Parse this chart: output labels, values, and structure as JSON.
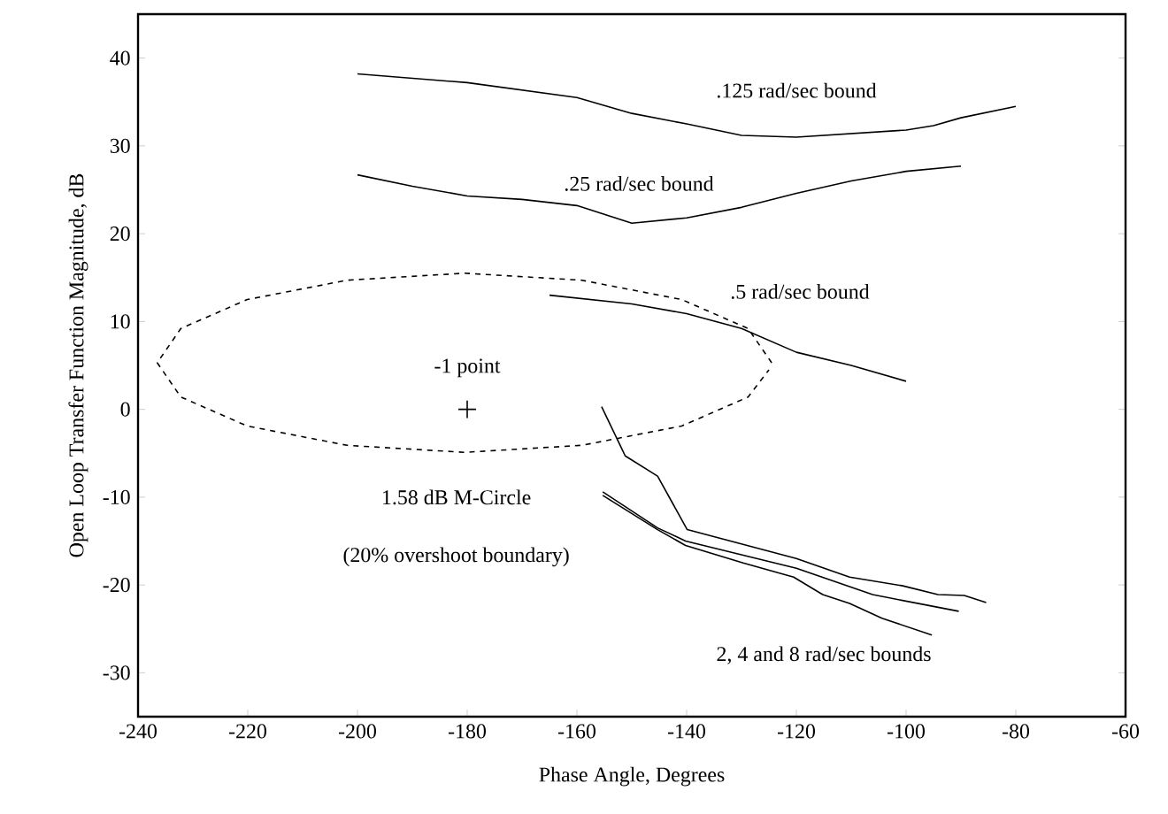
{
  "chart_data": {
    "type": "line",
    "xlabel": "Phase Angle, Degrees",
    "ylabel": "Open Loop Transfer Function Magnitude, dB",
    "xlim": [
      -240,
      -60
    ],
    "ylim": [
      -35,
      45
    ],
    "xticks": [
      -240,
      -220,
      -200,
      -180,
      -160,
      -140,
      -120,
      -100,
      -80,
      -60
    ],
    "yticks": [
      -30,
      -20,
      -10,
      0,
      10,
      20,
      30,
      40
    ],
    "legend": false,
    "series": [
      {
        "name": ".125 rad/sec bound",
        "color": "#000000",
        "line_style": "solid",
        "x": [
          -200,
          -180,
          -160,
          -150,
          -140,
          -130,
          -120,
          -110,
          -100,
          -95,
          -90,
          -80
        ],
        "values": [
          38.2,
          37.2,
          35.5,
          33.7,
          32.5,
          31.2,
          31.0,
          31.4,
          31.8,
          32.3,
          33.2,
          34.5
        ]
      },
      {
        "name": ".25 rad/sec bound",
        "color": "#000000",
        "line_style": "solid",
        "x": [
          -200,
          -190,
          -180,
          -170,
          -160,
          -150,
          -140,
          -130,
          -120,
          -110,
          -100,
          -90
        ],
        "values": [
          26.7,
          25.4,
          24.3,
          23.9,
          23.2,
          21.2,
          21.8,
          23.0,
          24.6,
          26.0,
          27.1,
          27.7
        ]
      },
      {
        "name": ".5 rad/sec bound",
        "color": "#000000",
        "line_style": "solid",
        "x": [
          -165,
          -150,
          -140,
          -130,
          -120,
          -110,
          -100
        ],
        "values": [
          13.0,
          12.0,
          10.9,
          9.2,
          6.5,
          5.0,
          3.2
        ]
      },
      {
        "color": "#000000",
        "line_style": "dashed",
        "x": [
          -124.5,
          -128.8,
          -140.9,
          -159.1,
          -180.5,
          -201.9,
          -220.1,
          -232.2,
          -236.5,
          -232.2,
          -220.1,
          -201.9,
          -180.5,
          -159.1,
          -140.9,
          -128.8,
          -125
        ],
        "values": [
          5.3,
          9.2,
          12.5,
          14.7,
          15.5,
          14.7,
          12.5,
          9.2,
          5.3,
          1.4,
          -1.9,
          -4.1,
          -4.9,
          -4.1,
          -1.9,
          1.4,
          4.5
        ]
      },
      {
        "color": "#000000",
        "line_style": "solid",
        "x": [
          -155.5,
          -151.2,
          -145.3,
          -139.9,
          -120,
          -110.3,
          -100.6,
          -94.2,
          -89.4,
          -85.4
        ],
        "values": [
          0.3,
          -5.3,
          -7.6,
          -13.7,
          -17.0,
          -19.1,
          -20.1,
          -21.1,
          -21.2,
          -22.0
        ]
      },
      {
        "color": "#000000",
        "line_style": "solid",
        "x": [
          -155.3,
          -145.3,
          -140.2,
          -120,
          -106.1,
          -90.4
        ],
        "values": [
          -9.4,
          -13.5,
          -15.0,
          -18.1,
          -21.1,
          -23.0
        ]
      },
      {
        "color": "#000000",
        "line_style": "solid",
        "x": [
          -155.3,
          -145.3,
          -140.2,
          -129.7,
          -120.5,
          -115.2,
          -110.3,
          -104.4,
          -95.3
        ],
        "values": [
          -9.8,
          -13.7,
          -15.5,
          -17.5,
          -19.1,
          -21.1,
          -22.1,
          -23.8,
          -25.7
        ]
      },
      {
        "type": "scatter",
        "color": "#000000",
        "marker": "cross",
        "x": [
          -180
        ],
        "values": [
          0
        ]
      }
    ],
    "annotations": [
      {
        "text": "-1 point",
        "x": -180,
        "y": 0
      },
      "1.58 dB M-Circle",
      "(20% overshoot boundary)",
      "2, 4 and 8 rad/sec bounds"
    ]
  }
}
